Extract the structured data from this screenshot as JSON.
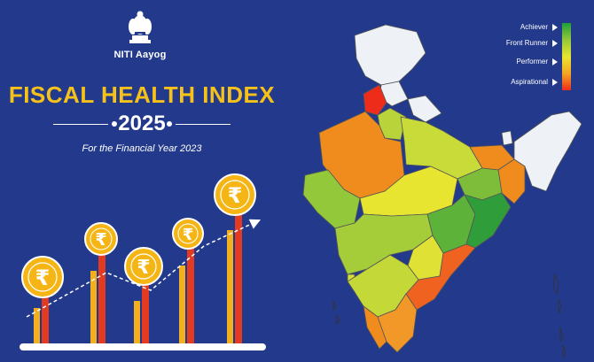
{
  "logo": {
    "text": "NITI Aayog",
    "emblem_icon": "national-emblem-icon"
  },
  "title": "FISCAL HEALTH INDEX",
  "year": "2025",
  "subtitle": "For the Financial Year 2023",
  "legend": {
    "items": [
      {
        "label": "Achiever",
        "color": "#1f9e3a"
      },
      {
        "label": "Front Runner",
        "color": "#93c83a"
      },
      {
        "label": "Performer",
        "color": "#e8e530"
      },
      {
        "label": "Aspirational",
        "color": "#ee2c1a"
      }
    ]
  },
  "illustration": {
    "coin_symbol": "₹",
    "coin_icon": "rupee-coin-icon",
    "trend_icon": "trend-arrow-icon"
  },
  "colors": {
    "background": "#233a8c",
    "title": "#f6c21a",
    "bar_yellow": "#f2b01e",
    "bar_red": "#e23b22",
    "coin": "#f5b515"
  }
}
